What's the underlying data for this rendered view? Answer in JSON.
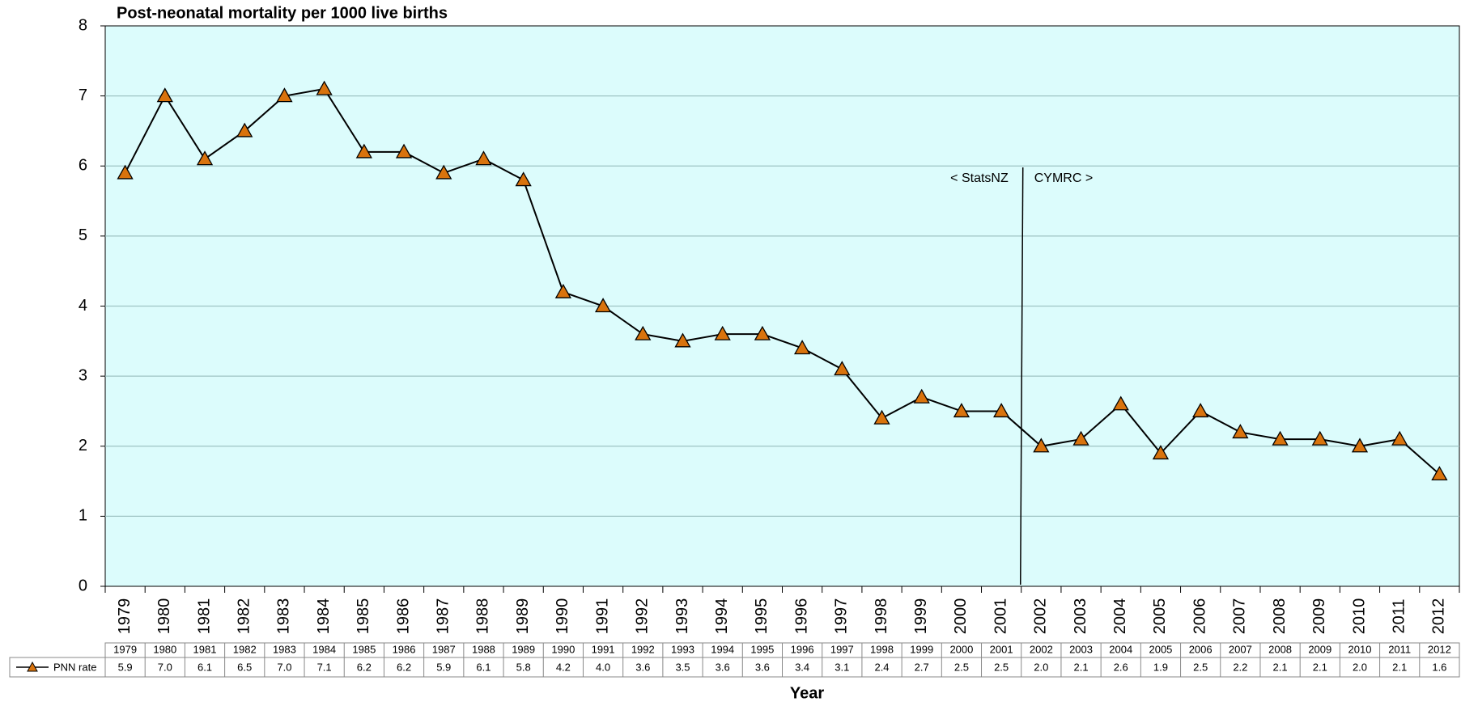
{
  "chart_data": {
    "type": "line",
    "title": "Post-neonatal mortality per 1000 live births",
    "x_label": "Year",
    "categories": [
      "1979",
      "1980",
      "1981",
      "1982",
      "1983",
      "1984",
      "1985",
      "1986",
      "1987",
      "1988",
      "1989",
      "1990",
      "1991",
      "1992",
      "1993",
      "1994",
      "1995",
      "1996",
      "1997",
      "1998",
      "1999",
      "2000",
      "2001",
      "2002",
      "2003",
      "2004",
      "2005",
      "2006",
      "2007",
      "2008",
      "2009",
      "2010",
      "2011",
      "2012"
    ],
    "series": [
      {
        "name": "PNN rate",
        "color": "#d9730d",
        "values": [
          5.9,
          7.0,
          6.1,
          6.5,
          7.0,
          7.1,
          6.2,
          6.2,
          5.9,
          6.1,
          5.8,
          4.2,
          4.0,
          3.6,
          3.5,
          3.6,
          3.6,
          3.4,
          3.1,
          2.4,
          2.7,
          2.5,
          2.5,
          2.0,
          2.1,
          2.6,
          1.9,
          2.5,
          2.2,
          2.1,
          2.1,
          2.0,
          2.1,
          1.6
        ],
        "value_labels": [
          "5.9",
          "7.0",
          "6.1",
          "6.5",
          "7.0",
          "7.1",
          "6.2",
          "6.2",
          "5.9",
          "6.1",
          "5.8",
          "4.2",
          "4.0",
          "3.6",
          "3.5",
          "3.6",
          "3.6",
          "3.4",
          "3.1",
          "2.4",
          "2.7",
          "2.5",
          "2.5",
          "2.0",
          "2.1",
          "2.6",
          "1.9",
          "2.5",
          "2.2",
          "2.1",
          "2.1",
          "2.0",
          "2.1",
          "1.6"
        ]
      }
    ],
    "ylim": [
      0,
      8
    ],
    "yticks": [
      0,
      1,
      2,
      3,
      4,
      5,
      6,
      7,
      8
    ],
    "grid": true,
    "annotations": [
      "< StatsNZ",
      "CYMRC >"
    ]
  }
}
